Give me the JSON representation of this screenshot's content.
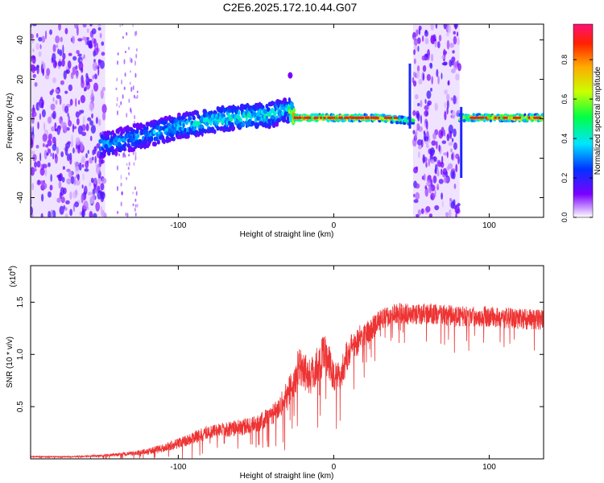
{
  "title": "C2E6.2025.172.10.44.G07",
  "colorbar": {
    "label": "Normalized spectral amplitude",
    "ticks": [
      "0.0",
      "0.2",
      "0.4",
      "0.6",
      "0.8"
    ],
    "tick_values": [
      0.0,
      0.2,
      0.4,
      0.6,
      0.8
    ],
    "range": [
      0,
      0.98
    ]
  },
  "chart_data": [
    {
      "type": "heatmap",
      "xlabel": "Height of straight line (km)",
      "ylabel": "Frequency (Hz)",
      "xlim": [
        -195,
        135
      ],
      "ylim": [
        -50,
        48
      ],
      "x_ticks": [
        -100,
        0,
        100
      ],
      "x_tick_labels": [
        "-100",
        "0",
        "100"
      ],
      "y_ticks": [
        -40,
        -20,
        0,
        20,
        40
      ],
      "y_tick_labels": [
        "-40",
        "-20",
        "0",
        "20",
        "40"
      ],
      "noise_bands": [
        {
          "x": [
            -195,
            -147
          ],
          "y": [
            -50,
            48
          ]
        },
        {
          "x": [
            51,
            81
          ],
          "y": [
            -50,
            48
          ]
        }
      ],
      "ridge": [
        {
          "x": -147,
          "f": -13,
          "amp": 0.35
        },
        {
          "x": -120,
          "f": -8,
          "amp": 0.35
        },
        {
          "x": -100,
          "f": -4,
          "amp": 0.4
        },
        {
          "x": -70,
          "f": 0,
          "amp": 0.45
        },
        {
          "x": -40,
          "f": 2,
          "amp": 0.45
        },
        {
          "x": -30,
          "f": 5,
          "amp": 0.4
        },
        {
          "x": -25,
          "f": 0.5,
          "amp": 0.9
        },
        {
          "x": 0,
          "f": 0.5,
          "amp": 0.9
        },
        {
          "x": 30,
          "f": 0.5,
          "amp": 0.85
        },
        {
          "x": 48,
          "f": -1,
          "amp": 0.6
        },
        {
          "x": 84,
          "f": 0.5,
          "amp": 0.85
        },
        {
          "x": 135,
          "f": 0.5,
          "amp": 0.85
        }
      ]
    },
    {
      "type": "line",
      "xlabel": "Height of straight line (km)",
      "ylabel": "SNR (10 * v/v)",
      "y_multiplier": "(x10",
      "y_multiplier_exp": "4",
      "xlim": [
        -195,
        135
      ],
      "ylim": [
        0,
        1.85
      ],
      "x_ticks": [
        -100,
        0,
        100
      ],
      "x_tick_labels": [
        "-100",
        "0",
        "100"
      ],
      "y_ticks": [
        0.5,
        1.0,
        1.5
      ],
      "y_tick_labels": [
        "0.5",
        "1.0",
        "1.5"
      ],
      "series": [
        {
          "color": "#ee3333",
          "x": [
            -195,
            -170,
            -150,
            -140,
            -130,
            -120,
            -110,
            -100,
            -90,
            -80,
            -70,
            -60,
            -50,
            -40,
            -35,
            -30,
            -25,
            -22,
            -20,
            -15,
            -10,
            -5,
            0,
            5,
            10,
            15,
            20,
            25,
            30,
            40,
            50,
            60,
            70,
            80,
            90,
            100,
            110,
            120,
            135
          ],
          "values": [
            0.02,
            0.02,
            0.03,
            0.04,
            0.05,
            0.07,
            0.1,
            0.15,
            0.2,
            0.26,
            0.28,
            0.3,
            0.33,
            0.42,
            0.5,
            0.6,
            0.75,
            0.9,
            0.88,
            0.78,
            0.92,
            1.0,
            0.78,
            0.82,
            1.05,
            1.12,
            1.2,
            1.25,
            1.33,
            1.4,
            1.38,
            1.39,
            1.38,
            1.36,
            1.37,
            1.36,
            1.35,
            1.34,
            1.33
          ],
          "jitter": [
            0.005,
            0.005,
            0.01,
            0.015,
            0.02,
            0.03,
            0.04,
            0.05,
            0.06,
            0.07,
            0.07,
            0.08,
            0.08,
            0.1,
            0.12,
            0.15,
            0.18,
            0.2,
            0.2,
            0.18,
            0.2,
            0.2,
            0.15,
            0.15,
            0.15,
            0.14,
            0.12,
            0.11,
            0.1,
            0.1,
            0.1,
            0.1,
            0.1,
            0.1,
            0.1,
            0.1,
            0.1,
            0.1,
            0.1
          ]
        }
      ]
    }
  ]
}
